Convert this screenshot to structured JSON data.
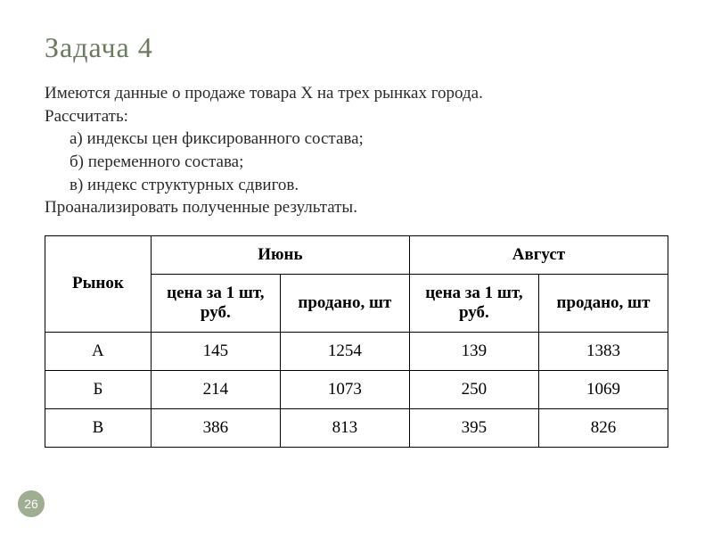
{
  "title": "Задача 4",
  "description": {
    "line1": "Имеются данные о продаже товара Х на трех рынках города.",
    "line2": "Рассчитать:",
    "item_a": "а) индексы цен фиксированного состава;",
    "item_b": "б) переменного состава;",
    "item_c": "в) индекс структурных сдвигов.",
    "line3": "Проанализировать полученные результаты."
  },
  "table": {
    "header_market": "Рынок",
    "header_june": "Июнь",
    "header_august": "Август",
    "subheader_price": "цена за 1 шт, руб.",
    "subheader_sold": "продано, шт",
    "subheader_price2": "цена за  1 шт, руб.",
    "subheader_sold2": "продано, шт",
    "rows": [
      {
        "market": "А",
        "june_price": "145",
        "june_sold": "1254",
        "aug_price": "139",
        "aug_sold": "1383"
      },
      {
        "market": "Б",
        "june_price": "214",
        "june_sold": "1073",
        "aug_price": "250",
        "aug_sold": "1069"
      },
      {
        "market": "В",
        "june_price": "386",
        "june_sold": "813",
        "aug_price": "395",
        "aug_sold": "826"
      }
    ]
  },
  "page_number": "26",
  "colors": {
    "title_color": "#6b7a5f",
    "text_color": "#2a2a2a",
    "border_color": "#000000",
    "badge_bg": "#9fae91",
    "badge_text": "#ffffff",
    "background": "#ffffff"
  }
}
